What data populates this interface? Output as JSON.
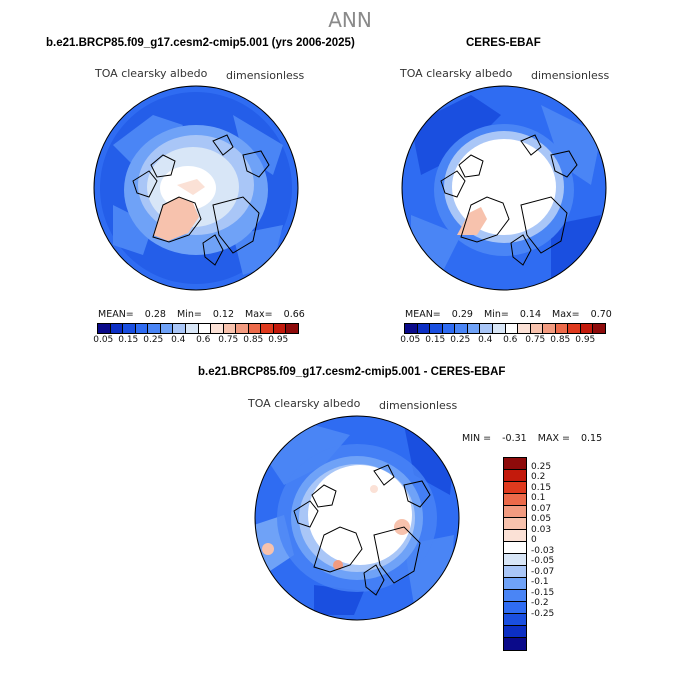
{
  "season": "ANN",
  "panels": [
    {
      "title": "b.e21.BRCP85.f09_g17.cesm2-cmip5.001 (yrs 2006-2025)",
      "variable": "TOA clearsky albedo",
      "units": "dimensionless",
      "mean_label": "MEAN=",
      "mean": "0.28",
      "min_label": "Min=",
      "min": "0.12",
      "max_label": "Max=",
      "max": "0.66"
    },
    {
      "title": "CERES-EBAF",
      "variable": "TOA clearsky albedo",
      "units": "dimensionless",
      "mean_label": "MEAN=",
      "mean": "0.29",
      "min_label": "Min=",
      "min": "0.14",
      "max_label": "Max=",
      "max": "0.70"
    },
    {
      "title": "b.e21.BRCP85.f09_g17.cesm2-cmip5.001 - CERES-EBAF",
      "variable": "TOA clearsky albedo",
      "units": "dimensionless",
      "min_label": "MIN =",
      "min": "-0.31",
      "max_label": "MAX =",
      "max": "0.15"
    }
  ],
  "colorbar_abs": {
    "colors": [
      "#0a0a8a",
      "#0c2fc4",
      "#1a4fe0",
      "#2f6cf2",
      "#4a85f5",
      "#6fa2f7",
      "#a9c6f7",
      "#d8e6f7",
      "#ffffff",
      "#fbe1d6",
      "#f7c2ad",
      "#f29b80",
      "#ec6a4a",
      "#df3a1e",
      "#c31a0c",
      "#8e0b0b"
    ],
    "labels": [
      "0.05",
      "0.15",
      "0.25",
      "0.4",
      "0.6",
      "0.75",
      "0.85",
      "0.95"
    ]
  },
  "colorbar_diff": {
    "colors": [
      "#8e0b0b",
      "#c31a0c",
      "#df3a1e",
      "#ec6a4a",
      "#f29b80",
      "#f7c2ad",
      "#fbe1d6",
      "#ffffff",
      "#d8e6f7",
      "#a9c6f7",
      "#6fa2f7",
      "#4a85f5",
      "#2f6cf2",
      "#1a4fe0",
      "#0c2fc4",
      "#0a0a8a"
    ],
    "labels": [
      "0.25",
      "0.2",
      "0.15",
      "0.1",
      "0.07",
      "0.05",
      "0.03",
      "0",
      "-0.03",
      "-0.05",
      "-0.07",
      "-0.1",
      "-0.15",
      "-0.2",
      "-0.25"
    ]
  }
}
